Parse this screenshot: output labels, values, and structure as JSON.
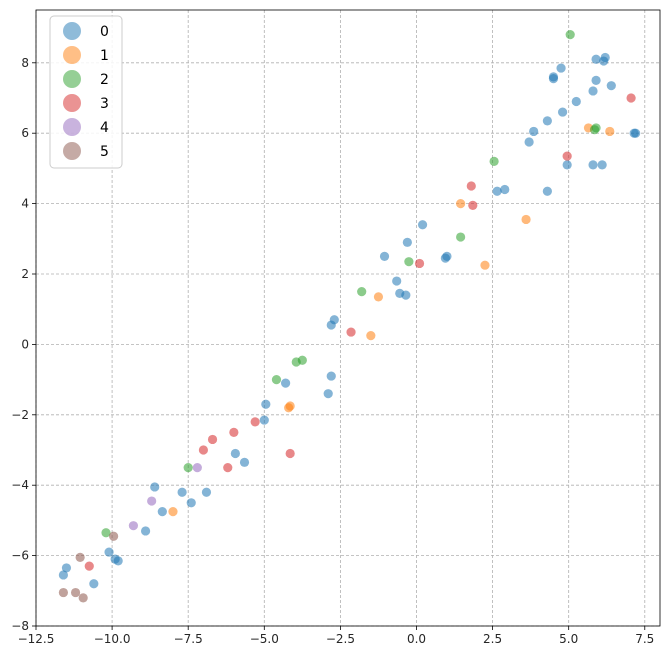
{
  "chart_data": {
    "type": "scatter",
    "title": "",
    "xlabel": "",
    "ylabel": "",
    "xlim": [
      -12.5,
      8.0
    ],
    "ylim": [
      -8,
      9.5
    ],
    "xticks": [
      -12.5,
      -10.0,
      -7.5,
      -5.0,
      -2.5,
      0.0,
      2.5,
      5.0,
      7.5
    ],
    "xtick_labels": [
      "−12.5",
      "−10.0",
      "−7.5",
      "−5.0",
      "−2.5",
      "0.0",
      "2.5",
      "5.0",
      "7.5"
    ],
    "yticks": [
      -8,
      -6,
      -4,
      -2,
      0,
      2,
      4,
      6,
      8
    ],
    "ytick_labels": [
      "−8",
      "−6",
      "−4",
      "−2",
      "0",
      "2",
      "4",
      "6",
      "8"
    ],
    "grid": true,
    "legend_position": "top-left",
    "series": [
      {
        "name": "0",
        "color": "#1f77b4",
        "points": [
          [
            -11.6,
            -6.55
          ],
          [
            -11.5,
            -6.35
          ],
          [
            -10.6,
            -6.8
          ],
          [
            -10.1,
            -5.9
          ],
          [
            -9.9,
            -6.1
          ],
          [
            -9.8,
            -6.15
          ],
          [
            -8.9,
            -5.3
          ],
          [
            -8.6,
            -4.05
          ],
          [
            -8.35,
            -4.75
          ],
          [
            -7.7,
            -4.2
          ],
          [
            -7.4,
            -4.5
          ],
          [
            -6.9,
            -4.2
          ],
          [
            -5.95,
            -3.1
          ],
          [
            -5.65,
            -3.35
          ],
          [
            -4.95,
            -1.7
          ],
          [
            -5.0,
            -2.15
          ],
          [
            -4.3,
            -1.1
          ],
          [
            -2.9,
            -1.4
          ],
          [
            -2.8,
            -0.9
          ],
          [
            -2.8,
            0.55
          ],
          [
            -2.7,
            0.7
          ],
          [
            -1.05,
            2.5
          ],
          [
            -0.65,
            1.8
          ],
          [
            -0.55,
            1.45
          ],
          [
            -0.35,
            1.4
          ],
          [
            -0.3,
            2.9
          ],
          [
            0.2,
            3.4
          ],
          [
            0.95,
            2.45
          ],
          [
            1.0,
            2.5
          ],
          [
            2.65,
            4.35
          ],
          [
            2.9,
            4.4
          ],
          [
            3.7,
            5.75
          ],
          [
            3.85,
            6.05
          ],
          [
            4.3,
            4.35
          ],
          [
            4.3,
            6.35
          ],
          [
            4.5,
            7.55
          ],
          [
            4.5,
            7.6
          ],
          [
            4.75,
            7.85
          ],
          [
            4.8,
            6.6
          ],
          [
            4.95,
            5.1
          ],
          [
            5.25,
            6.9
          ],
          [
            5.8,
            5.1
          ],
          [
            5.8,
            7.2
          ],
          [
            5.9,
            7.5
          ],
          [
            5.9,
            8.1
          ],
          [
            6.1,
            5.1
          ],
          [
            6.15,
            8.05
          ],
          [
            6.2,
            8.15
          ],
          [
            6.4,
            7.35
          ],
          [
            7.15,
            6.0
          ],
          [
            7.2,
            6.0
          ]
        ]
      },
      {
        "name": "1",
        "color": "#ff7f0e",
        "points": [
          [
            -8.0,
            -4.75
          ],
          [
            -4.15,
            -1.75
          ],
          [
            -4.2,
            -1.8
          ],
          [
            -1.5,
            0.25
          ],
          [
            -1.25,
            1.35
          ],
          [
            1.45,
            4.0
          ],
          [
            2.25,
            2.25
          ],
          [
            3.6,
            3.55
          ],
          [
            5.65,
            6.15
          ],
          [
            6.35,
            6.05
          ]
        ]
      },
      {
        "name": "2",
        "color": "#2ca02c",
        "points": [
          [
            -10.2,
            -5.35
          ],
          [
            -7.5,
            -3.5
          ],
          [
            -4.6,
            -1.0
          ],
          [
            -3.95,
            -0.5
          ],
          [
            -3.75,
            -0.45
          ],
          [
            -1.8,
            1.5
          ],
          [
            -0.25,
            2.35
          ],
          [
            1.45,
            3.05
          ],
          [
            2.55,
            5.2
          ],
          [
            5.05,
            8.8
          ],
          [
            5.9,
            6.15
          ],
          [
            5.85,
            6.1
          ]
        ]
      },
      {
        "name": "3",
        "color": "#d62728",
        "points": [
          [
            -10.75,
            -6.3
          ],
          [
            -7.0,
            -3.0
          ],
          [
            -6.7,
            -2.7
          ],
          [
            -6.2,
            -3.5
          ],
          [
            -6.0,
            -2.5
          ],
          [
            -5.3,
            -2.2
          ],
          [
            -4.15,
            -3.1
          ],
          [
            -2.15,
            0.35
          ],
          [
            0.1,
            2.3
          ],
          [
            1.8,
            4.5
          ],
          [
            1.85,
            3.95
          ],
          [
            4.95,
            5.35
          ],
          [
            7.05,
            7.0
          ]
        ]
      },
      {
        "name": "4",
        "color": "#9467bd",
        "points": [
          [
            -9.3,
            -5.15
          ],
          [
            -8.7,
            -4.45
          ],
          [
            -7.2,
            -3.5
          ]
        ]
      },
      {
        "name": "5",
        "color": "#8c564b",
        "points": [
          [
            -11.6,
            -7.05
          ],
          [
            -11.2,
            -7.05
          ],
          [
            -11.05,
            -6.05
          ],
          [
            -10.95,
            -7.2
          ],
          [
            -9.95,
            -5.45
          ]
        ]
      }
    ]
  }
}
